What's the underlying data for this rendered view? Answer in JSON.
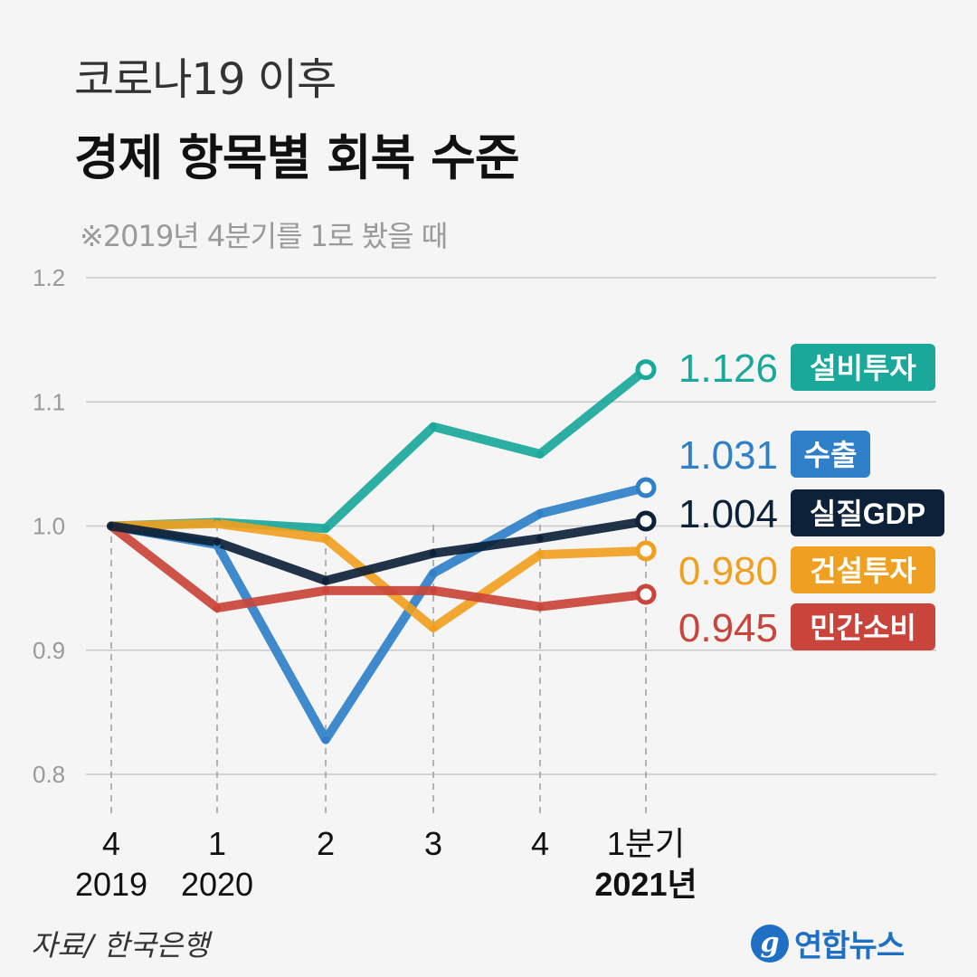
{
  "title": {
    "line1": "코로나19 이후",
    "line2": "경제 항목별 회복 수준"
  },
  "subtitle": "※2019년 4분기를 1로 봤을 때",
  "source": "자료/ 한국은행",
  "logo": {
    "mark": "g",
    "text": "연합뉴스"
  },
  "chart_data": {
    "type": "line",
    "title": "코로나19 이후 경제 항목별 회복 수준",
    "subtitle": "※2019년 4분기를 1로 봤을 때",
    "x_labels": [
      {
        "top": "4",
        "bottom": "2019",
        "bold": false
      },
      {
        "top": "1",
        "bottom": "2020",
        "bold": false
      },
      {
        "top": "2",
        "bottom": "",
        "bold": false
      },
      {
        "top": "3",
        "bottom": "",
        "bold": false
      },
      {
        "top": "4",
        "bottom": "",
        "bold": false
      },
      {
        "top": "1분기",
        "bottom": "2021년",
        "bold": true
      }
    ],
    "ylim": [
      0.8,
      1.2
    ],
    "yticks": [
      "0.8",
      "0.9",
      "1.0",
      "1.1",
      "1.2"
    ],
    "grid": true,
    "series": [
      {
        "name": "설비투자",
        "color": "#1aa89a",
        "values": [
          1.0,
          1.003,
          0.998,
          1.08,
          1.058,
          1.126
        ],
        "last_label": "1.126"
      },
      {
        "name": "수출",
        "color": "#2f80c8",
        "values": [
          1.0,
          0.985,
          0.828,
          0.962,
          1.01,
          1.031
        ],
        "last_label": "1.031"
      },
      {
        "name": "건설투자",
        "color": "#f0a020",
        "values": [
          1.0,
          1.002,
          0.99,
          0.918,
          0.977,
          0.98
        ],
        "last_label": "0.980"
      },
      {
        "name": "민간소비",
        "color": "#c9443a",
        "values": [
          1.0,
          0.934,
          0.948,
          0.948,
          0.935,
          0.945
        ],
        "last_label": "0.945"
      },
      {
        "name": "실질GDP",
        "color": "#0d2238",
        "values": [
          1.0,
          0.987,
          0.956,
          0.978,
          0.99,
          1.004
        ],
        "last_label": "1.004"
      }
    ]
  }
}
